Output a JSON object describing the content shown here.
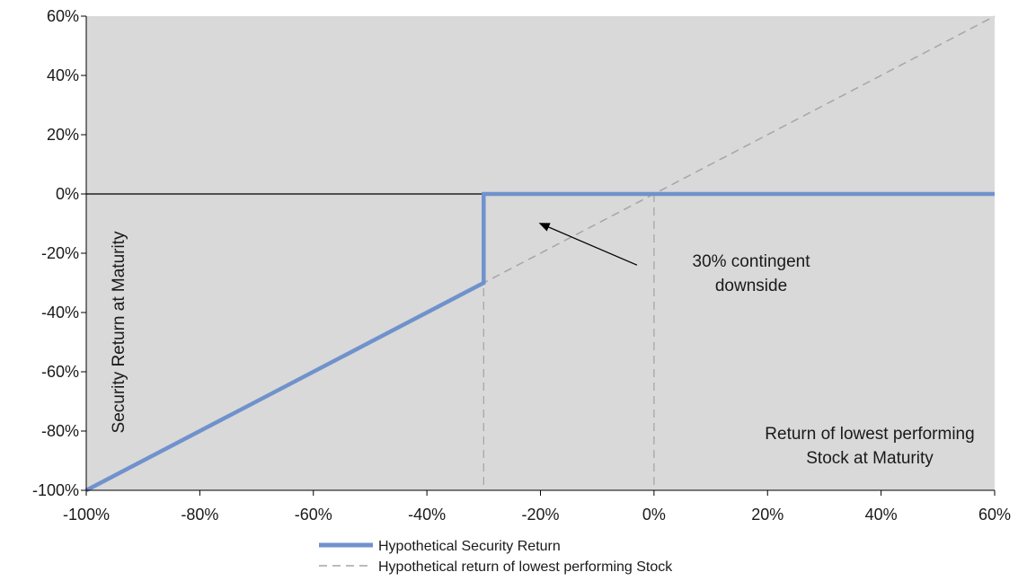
{
  "chart_data": {
    "type": "line",
    "title": "",
    "ylabel": "Security Return at Maturity",
    "xlabel": "Return of lowest performing Stock at Maturity",
    "xlabel_lines": [
      "Return of lowest performing",
      "Stock at Maturity"
    ],
    "xlim": [
      -100,
      60
    ],
    "ylim": [
      -100,
      60
    ],
    "x_ticks": [
      -100,
      -80,
      -60,
      -40,
      -20,
      0,
      20,
      40,
      60
    ],
    "y_ticks": [
      -100,
      -80,
      -60,
      -40,
      -20,
      0,
      20,
      40,
      60
    ],
    "x_tick_labels": [
      "-100%",
      "-80%",
      "-60%",
      "-40%",
      "-20%",
      "0%",
      "20%",
      "40%",
      "60%"
    ],
    "y_tick_labels": [
      "-100%",
      "-80%",
      "-60%",
      "-40%",
      "-20%",
      "0%",
      "20%",
      "40%",
      "60%"
    ],
    "grid": false,
    "plot_background": "#d9d9d9",
    "series": [
      {
        "name": "Hypothetical Security Return",
        "color": "#7092cc",
        "style": "solid",
        "x": [
          -100,
          -30,
          -30,
          60
        ],
        "y": [
          -100,
          -30,
          0,
          0
        ]
      },
      {
        "name": "Hypothetical return of lowest performing Stock",
        "color": "#a6a6a6",
        "style": "dashed",
        "x": [
          -100,
          60
        ],
        "y": [
          -100,
          60
        ]
      }
    ],
    "reference_lines": {
      "horizontal_zero": 0,
      "vertical_dashed_x": [
        -30,
        0
      ]
    },
    "annotation": {
      "lines": [
        "30% contingent",
        "downside"
      ],
      "arrow_from": [
        -3,
        -24
      ],
      "arrow_to": [
        -20,
        -10
      ]
    },
    "legend_position": "bottom-center"
  }
}
